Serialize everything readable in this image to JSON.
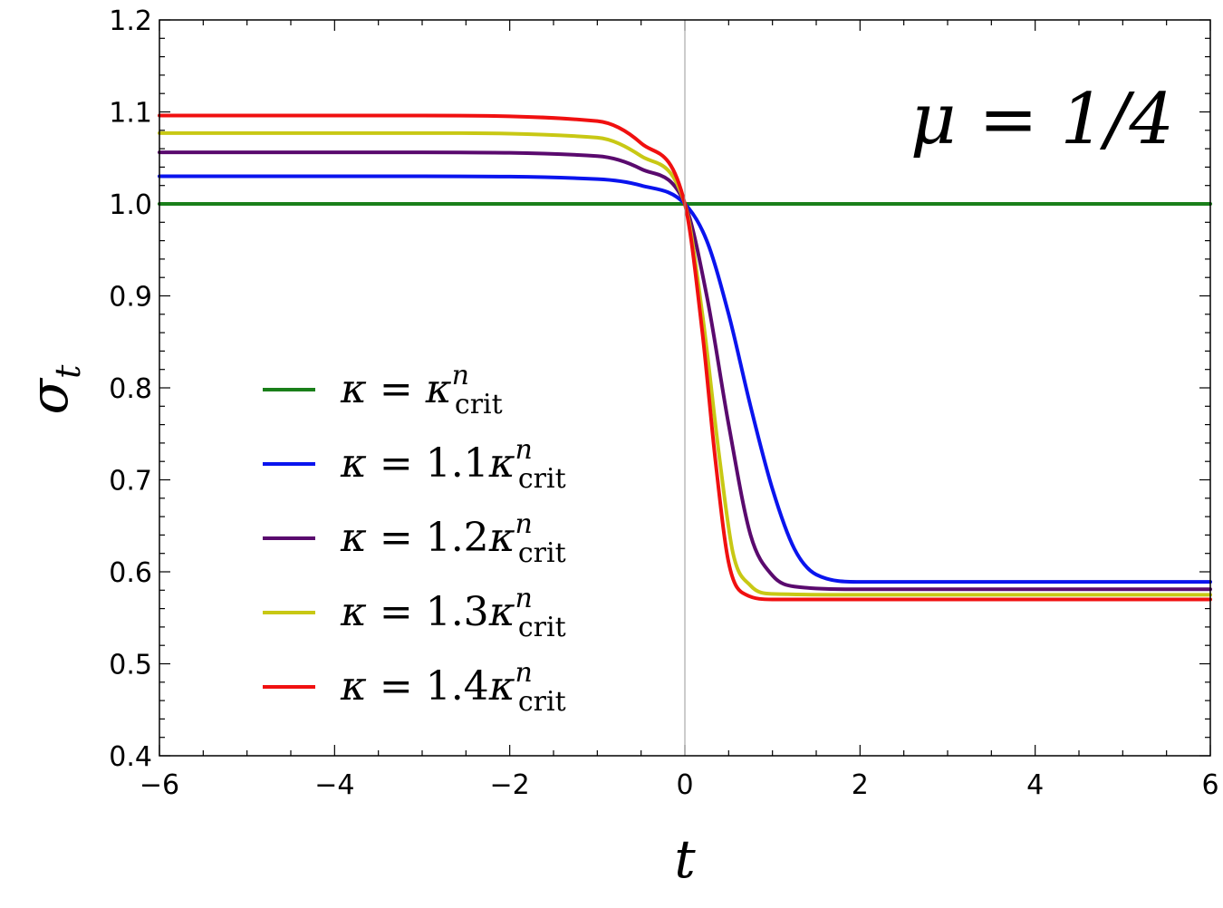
{
  "chart_data": {
    "type": "line",
    "xlabel": "t",
    "ylabel": "σ",
    "ylabel_sub": "t",
    "annotation": "μ = 1/4",
    "xlim": [
      -6,
      6
    ],
    "ylim": [
      0.4,
      1.2
    ],
    "xticks": [
      -6,
      -4,
      -2,
      0,
      2,
      4,
      6
    ],
    "xtick_labels": [
      "−6",
      "−4",
      "−2",
      "0",
      "2",
      "4",
      "6"
    ],
    "yticks": [
      0.4,
      0.5,
      0.6,
      0.7,
      0.8,
      0.9,
      1.0,
      1.1,
      1.2
    ],
    "ytick_labels": [
      "0.4",
      "0.5",
      "0.6",
      "0.7",
      "0.8",
      "0.9",
      "1.0",
      "1.1",
      "1.2"
    ],
    "grid": false,
    "legend_position": "left",
    "series": [
      {
        "name": "κ = κcritn",
        "legend_coef": "",
        "color": "#1a7f1a",
        "x": [
          -6,
          0,
          6
        ],
        "y": [
          1.0,
          1.0,
          1.0
        ]
      },
      {
        "name": "κ = 1.1κcritn",
        "legend_coef": "1.1",
        "color": "#0a14ee",
        "x": [
          -6,
          -3,
          -1,
          -0.5,
          0,
          0.25,
          0.5,
          0.75,
          1.0,
          1.25,
          1.5,
          2,
          3,
          6
        ],
        "y": [
          1.03,
          1.03,
          1.027,
          1.02,
          1.0,
          0.96,
          0.88,
          0.78,
          0.69,
          0.625,
          0.597,
          0.589,
          0.589,
          0.589
        ]
      },
      {
        "name": "κ = 1.2κcritn",
        "legend_coef": "1.2",
        "color": "#5a0a6e",
        "x": [
          -6,
          -3,
          -1,
          -0.5,
          0,
          0.25,
          0.5,
          0.75,
          1.0,
          1.25,
          2,
          3,
          6
        ],
        "y": [
          1.056,
          1.056,
          1.052,
          1.038,
          1.0,
          0.9,
          0.76,
          0.64,
          0.596,
          0.584,
          0.581,
          0.581,
          0.581
        ]
      },
      {
        "name": "κ = 1.3κcritn",
        "legend_coef": "1.3",
        "color": "#c8c814",
        "x": [
          -6,
          -3,
          -1,
          -0.5,
          0,
          0.2,
          0.4,
          0.55,
          0.75,
          1.0,
          2,
          3,
          6
        ],
        "y": [
          1.077,
          1.077,
          1.072,
          1.052,
          1.0,
          0.88,
          0.72,
          0.62,
          0.585,
          0.576,
          0.575,
          0.575,
          0.575
        ]
      },
      {
        "name": "κ = 1.4κcritn",
        "legend_coef": "1.4",
        "color": "#f01010",
        "x": [
          -6,
          -3,
          -1,
          -0.5,
          0,
          0.2,
          0.35,
          0.5,
          0.7,
          1.0,
          2,
          3,
          6
        ],
        "y": [
          1.096,
          1.096,
          1.09,
          1.066,
          1.0,
          0.86,
          0.72,
          0.61,
          0.575,
          0.57,
          0.57,
          0.57,
          0.57
        ]
      }
    ]
  }
}
